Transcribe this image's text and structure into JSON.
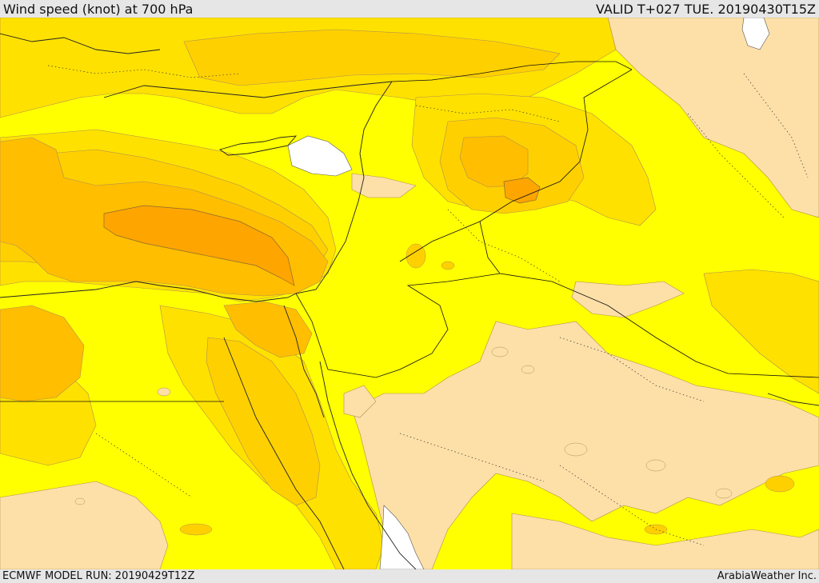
{
  "header": {
    "title": "Wind speed (knot) at 700 hPa",
    "valid_time": "VALID T+027 TUE. 20190430T15Z"
  },
  "footer": {
    "model_run": "ECMWF MODEL RUN: 20190429T12Z",
    "credit": "ArabiaWeather Inc."
  },
  "map": {
    "variable": "wind speed",
    "units": "knot",
    "level": "700 hPa",
    "colors": {
      "calm": "#fde0a8",
      "light": "#ffff00",
      "moderate": "#ffe100",
      "fresh": "#ffd000",
      "strong": "#ffbe00",
      "very_strong": "#ffa500",
      "strongest": "#f58a00",
      "no_data": "#ffffff"
    }
  }
}
